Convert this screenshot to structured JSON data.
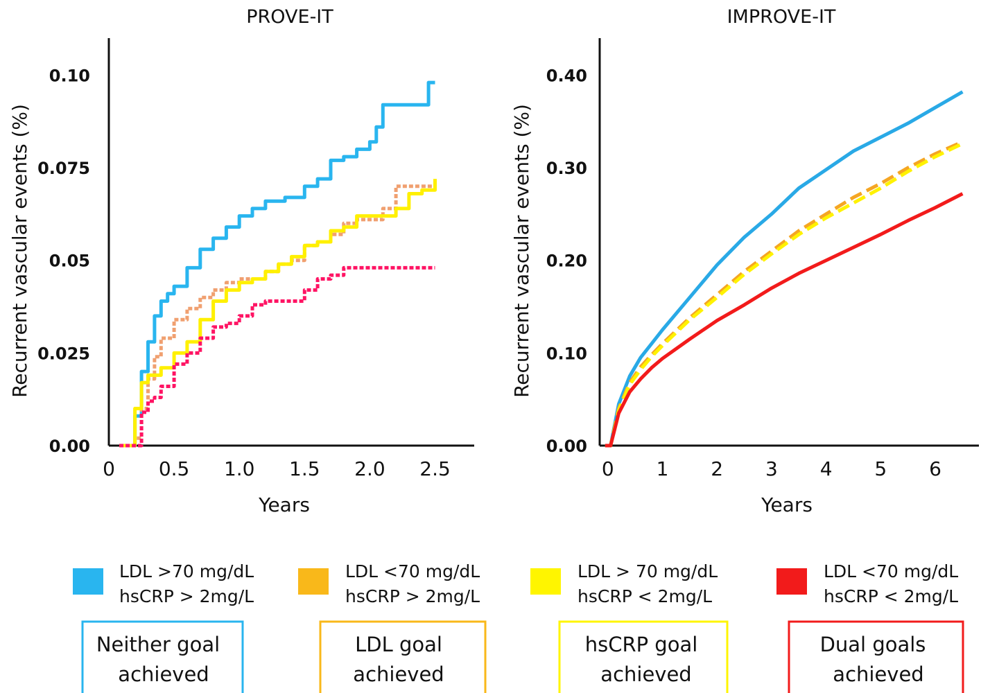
{
  "chart_data": [
    {
      "type": "line",
      "title": "PROVE-IT",
      "xlabel": "Years",
      "ylabel": "Recurrent vascular events (%)",
      "xlim": [
        0,
        2.8
      ],
      "ylim": [
        0,
        0.11
      ],
      "x_ticks": [
        "0",
        "0.5",
        "1.0",
        "1.5",
        "2.0",
        "2.5"
      ],
      "y_ticks": [
        "0.00",
        "0.025",
        "0.05",
        "0.075",
        "0.10"
      ],
      "step": true,
      "series": [
        {
          "color": "#29B5EF",
          "dashed": false,
          "x": [
            0.08,
            0.15,
            0.2,
            0.25,
            0.3,
            0.35,
            0.4,
            0.45,
            0.5,
            0.6,
            0.7,
            0.8,
            0.9,
            1.0,
            1.1,
            1.2,
            1.35,
            1.5,
            1.6,
            1.7,
            1.8,
            1.9,
            2.0,
            2.05,
            2.1,
            2.2,
            2.3,
            2.35,
            2.4,
            2.45,
            2.5
          ],
          "y": [
            0,
            0,
            0.008,
            0.02,
            0.028,
            0.035,
            0.039,
            0.041,
            0.043,
            0.048,
            0.053,
            0.056,
            0.059,
            0.062,
            0.064,
            0.066,
            0.067,
            0.07,
            0.072,
            0.077,
            0.078,
            0.08,
            0.082,
            0.086,
            0.092,
            0.092,
            0.092,
            0.092,
            0.092,
            0.098,
            0.098
          ]
        },
        {
          "color": "#F0A070",
          "dashed": true,
          "x": [
            0.08,
            0.18,
            0.2,
            0.25,
            0.3,
            0.35,
            0.4,
            0.5,
            0.6,
            0.7,
            0.8,
            0.9,
            1.0,
            1.2,
            1.3,
            1.4,
            1.5,
            1.6,
            1.7,
            1.8,
            1.9,
            2.0,
            2.1,
            2.2,
            2.3,
            2.4,
            2.5
          ],
          "y": [
            0,
            0,
            0.002,
            0.01,
            0.018,
            0.024,
            0.029,
            0.034,
            0.037,
            0.04,
            0.042,
            0.044,
            0.045,
            0.047,
            0.049,
            0.05,
            0.054,
            0.055,
            0.057,
            0.06,
            0.061,
            0.061,
            0.064,
            0.07,
            0.07,
            0.07,
            0.07
          ]
        },
        {
          "color": "#FFF000",
          "dashed": false,
          "x": [
            0.08,
            0.15,
            0.2,
            0.25,
            0.3,
            0.4,
            0.5,
            0.6,
            0.7,
            0.8,
            0.9,
            1.0,
            1.1,
            1.2,
            1.3,
            1.4,
            1.5,
            1.6,
            1.7,
            1.8,
            1.9,
            2.0,
            2.1,
            2.2,
            2.3,
            2.4,
            2.5
          ],
          "y": [
            0,
            0,
            0.01,
            0.017,
            0.019,
            0.021,
            0.025,
            0.028,
            0.034,
            0.039,
            0.042,
            0.044,
            0.045,
            0.047,
            0.049,
            0.051,
            0.054,
            0.055,
            0.058,
            0.059,
            0.062,
            0.062,
            0.062,
            0.064,
            0.068,
            0.069,
            0.072
          ]
        },
        {
          "color": "#FF1464",
          "dashed": true,
          "x": [
            0.08,
            0.2,
            0.25,
            0.3,
            0.35,
            0.4,
            0.5,
            0.6,
            0.7,
            0.8,
            0.9,
            1.0,
            1.1,
            1.2,
            1.3,
            1.5,
            1.6,
            1.7,
            1.8,
            1.9,
            2.0,
            2.2,
            2.5
          ],
          "y": [
            0,
            0,
            0.009,
            0.012,
            0.013,
            0.016,
            0.022,
            0.025,
            0.029,
            0.032,
            0.033,
            0.035,
            0.038,
            0.039,
            0.039,
            0.042,
            0.045,
            0.046,
            0.048,
            0.048,
            0.048,
            0.048,
            0.048
          ]
        }
      ]
    },
    {
      "type": "line",
      "title": "IMPROVE-IT",
      "xlabel": "Years",
      "ylabel": "Recurrent vascular events (%)",
      "xlim": [
        -0.15,
        6.8
      ],
      "ylim": [
        0,
        0.44
      ],
      "x_ticks": [
        "0",
        "1",
        "2",
        "3",
        "4",
        "5",
        "6"
      ],
      "y_ticks": [
        "0.00",
        "0.10",
        "0.20",
        "0.30",
        "0.40"
      ],
      "step": false,
      "series": [
        {
          "color": "#29A9E6",
          "dashed": false,
          "x": [
            -0.05,
            0.05,
            0.2,
            0.4,
            0.6,
            0.8,
            1,
            1.5,
            2,
            2.5,
            3,
            3.5,
            4,
            4.5,
            5,
            5.5,
            6,
            6.5
          ],
          "y": [
            0,
            0,
            0.045,
            0.075,
            0.095,
            0.11,
            0.125,
            0.16,
            0.195,
            0.225,
            0.25,
            0.278,
            0.298,
            0.318,
            0.333,
            0.348,
            0.365,
            0.382
          ]
        },
        {
          "color": "#F5A623",
          "dashed": true,
          "x": [
            -0.05,
            0.05,
            0.2,
            0.4,
            0.6,
            0.8,
            1,
            1.5,
            2,
            2.5,
            3,
            3.5,
            4,
            4.5,
            5,
            5.5,
            6,
            6.5
          ],
          "y": [
            0,
            0,
            0.04,
            0.068,
            0.085,
            0.098,
            0.11,
            0.138,
            0.163,
            0.188,
            0.21,
            0.232,
            0.25,
            0.268,
            0.283,
            0.3,
            0.315,
            0.328
          ]
        },
        {
          "color": "#FFF200",
          "dashed": true,
          "x": [
            -0.05,
            0.05,
            0.2,
            0.4,
            0.6,
            0.8,
            1,
            1.5,
            2,
            2.5,
            3,
            3.5,
            4,
            4.5,
            5,
            5.5,
            6,
            6.5
          ],
          "y": [
            0,
            0,
            0.038,
            0.066,
            0.082,
            0.096,
            0.108,
            0.136,
            0.16,
            0.185,
            0.207,
            0.228,
            0.246,
            0.262,
            0.278,
            0.296,
            0.312,
            0.326
          ]
        },
        {
          "color": "#F21B1B",
          "dashed": false,
          "x": [
            -0.05,
            0.05,
            0.2,
            0.4,
            0.6,
            0.8,
            1,
            1.5,
            2,
            2.5,
            3,
            3.5,
            4,
            4.5,
            5,
            5.5,
            6,
            6.5
          ],
          "y": [
            0,
            0,
            0.035,
            0.058,
            0.072,
            0.084,
            0.094,
            0.115,
            0.135,
            0.152,
            0.17,
            0.186,
            0.2,
            0.214,
            0.228,
            0.243,
            0.257,
            0.272
          ]
        }
      ]
    }
  ],
  "legend": [
    {
      "color": "#29B5EF",
      "line1": "LDL >70 mg/dL",
      "line2": "hsCRP > 2mg/L"
    },
    {
      "color": "#F9B81A",
      "line1": "LDL <70 mg/dL",
      "line2": "hsCRP > 2mg/L"
    },
    {
      "color": "#FFF500",
      "line1": "LDL > 70 mg/dL",
      "line2": "hsCRP < 2mg/L"
    },
    {
      "color": "#F21B1B",
      "line1": "LDL <70 mg/dL",
      "line2": "hsCRP < 2mg/L"
    }
  ],
  "goal_boxes": [
    {
      "color": "#29B5EF",
      "line1": "Neither goal",
      "line2": "achieved"
    },
    {
      "color": "#F9B81A",
      "line1": "LDL goal",
      "line2": "achieved"
    },
    {
      "color": "#FFF500",
      "line1": "hsCRP goal",
      "line2": "achieved"
    },
    {
      "color": "#F21B1B",
      "line1": "Dual goals",
      "line2": "achieved"
    }
  ]
}
